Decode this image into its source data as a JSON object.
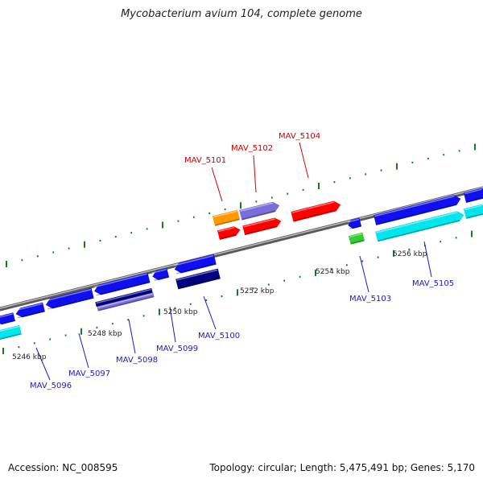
{
  "title": "Mycobacterium avium 104, complete genome",
  "footer": {
    "accession": "Accession: NC_008595",
    "summary": "Topology: circular; Length: 5,475,491 bp; Genes: 5,170"
  },
  "colors": {
    "backbone": "#888888",
    "tick": "#1a7a1a",
    "red_gene": "#ff0000",
    "blue_gene": "#1010ee",
    "navy_gene": "#000080",
    "lavender_gene": "#7a6fd8",
    "cyan_gene": "#00e5ee",
    "orange_gene": "#ff9900",
    "green_gene": "#33cc33",
    "label_red": "#cc0000",
    "label_blue": "#1a1acc"
  },
  "scale_labels": [
    {
      "text": "5246 kbp"
    },
    {
      "text": "5248 kbp"
    },
    {
      "text": "5250 kbp"
    },
    {
      "text": "5252 kbp"
    },
    {
      "text": "5254 kbp"
    },
    {
      "text": "5256 kbp"
    }
  ],
  "gene_labels": [
    {
      "text": "MAV_5096",
      "color": "label_blue"
    },
    {
      "text": "MAV_5097",
      "color": "label_blue"
    },
    {
      "text": "MAV_5098",
      "color": "label_blue"
    },
    {
      "text": "MAV_5099",
      "color": "label_blue"
    },
    {
      "text": "MAV_5100",
      "color": "label_blue"
    },
    {
      "text": "MAV_5101",
      "color": "label_red"
    },
    {
      "text": "MAV_5102",
      "color": "label_red"
    },
    {
      "text": "MAV_5103",
      "color": "label_blue"
    },
    {
      "text": "MAV_5104",
      "color": "label_red"
    },
    {
      "text": "MAV_5105",
      "color": "label_blue"
    }
  ]
}
